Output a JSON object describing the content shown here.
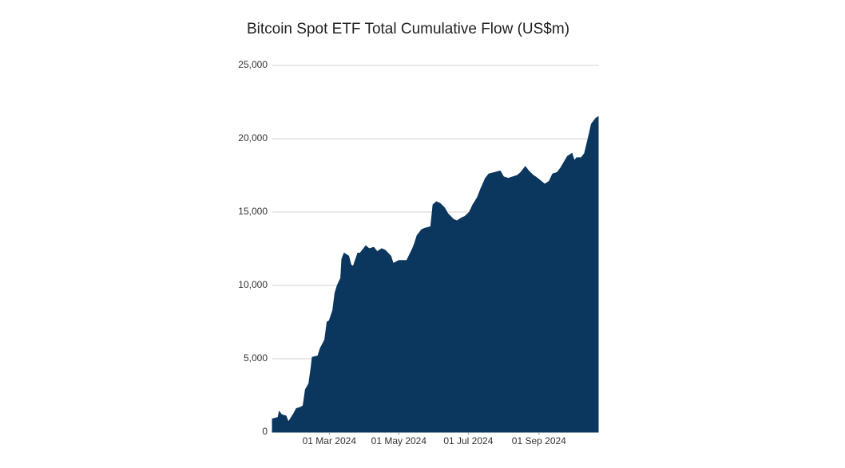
{
  "chart_data": {
    "type": "area",
    "title": "Bitcoin Spot ETF Total Cumulative Flow (US$m)",
    "color": "#0b365e",
    "grid": true,
    "xlim": [
      "2024-01-11",
      "2024-10-23"
    ],
    "xticks": [
      {
        "value": "2024-03-01",
        "label": "01 Mar 2024"
      },
      {
        "value": "2024-05-01",
        "label": "01 May 2024"
      },
      {
        "value": "2024-07-01",
        "label": "01 Jul 2024"
      },
      {
        "value": "2024-09-01",
        "label": "01 Sep 2024"
      }
    ],
    "ylim": [
      0,
      25000
    ],
    "yticks": [
      0,
      {
        "value": 5000,
        "label": "5,000"
      },
      {
        "value": 10000,
        "label": "10,000"
      },
      {
        "value": 15000,
        "label": "15,000"
      },
      {
        "value": 20000,
        "label": "20,000"
      },
      {
        "value": 25000,
        "label": "25,000"
      }
    ],
    "x": [
      "2024-01-11",
      "2024-01-16",
      "2024-01-17",
      "2024-01-19",
      "2024-01-23",
      "2024-01-25",
      "2024-01-26",
      "2024-01-30",
      "2024-02-01",
      "2024-02-05",
      "2024-02-07",
      "2024-02-09",
      "2024-02-12",
      "2024-02-14",
      "2024-02-15",
      "2024-02-20",
      "2024-02-22",
      "2024-02-26",
      "2024-02-28",
      "2024-03-01",
      "2024-03-04",
      "2024-03-06",
      "2024-03-08",
      "2024-03-11",
      "2024-03-12",
      "2024-03-14",
      "2024-03-18",
      "2024-03-20",
      "2024-03-22",
      "2024-03-26",
      "2024-03-28",
      "2024-04-02",
      "2024-04-05",
      "2024-04-09",
      "2024-04-12",
      "2024-04-16",
      "2024-04-19",
      "2024-04-24",
      "2024-04-26",
      "2024-05-01",
      "2024-05-06",
      "2024-05-08",
      "2024-05-13",
      "2024-05-15",
      "2024-05-17",
      "2024-05-21",
      "2024-05-24",
      "2024-05-29",
      "2024-05-31",
      "2024-06-03",
      "2024-06-06",
      "2024-06-10",
      "2024-06-13",
      "2024-06-18",
      "2024-06-21",
      "2024-06-25",
      "2024-06-28",
      "2024-07-02",
      "2024-07-05",
      "2024-07-09",
      "2024-07-12",
      "2024-07-16",
      "2024-07-19",
      "2024-07-24",
      "2024-07-29",
      "2024-08-01",
      "2024-08-05",
      "2024-08-09",
      "2024-08-13",
      "2024-08-16",
      "2024-08-20",
      "2024-08-23",
      "2024-08-27",
      "2024-08-29",
      "2024-09-03",
      "2024-09-06",
      "2024-09-10",
      "2024-09-13",
      "2024-09-17",
      "2024-09-20",
      "2024-09-26",
      "2024-09-30",
      "2024-10-02",
      "2024-10-04",
      "2024-10-08",
      "2024-10-11",
      "2024-10-15",
      "2024-10-17",
      "2024-10-21",
      "2024-10-23"
    ],
    "values": [
      900,
      1000,
      1400,
      1200,
      1100,
      700,
      800,
      1300,
      1600,
      1700,
      1800,
      2900,
      3300,
      4400,
      5100,
      5200,
      5700,
      6300,
      7500,
      7600,
      8300,
      9500,
      10000,
      10500,
      11800,
      12200,
      12000,
      11400,
      11300,
      12200,
      12200,
      12700,
      12500,
      12600,
      12300,
      12500,
      12400,
      12000,
      11500,
      11700,
      11700,
      11700,
      12500,
      12900,
      13400,
      13800,
      13900,
      14000,
      15500,
      15700,
      15600,
      15300,
      14900,
      14500,
      14400,
      14600,
      14700,
      15000,
      15500,
      16000,
      16600,
      17300,
      17600,
      17700,
      17800,
      17400,
      17300,
      17400,
      17500,
      17700,
      18100,
      17800,
      17500,
      17400,
      17100,
      16900,
      17100,
      17600,
      17700,
      18000,
      18800,
      19000,
      18500,
      18700,
      18700,
      19000,
      20300,
      21000,
      21400,
      21500
    ]
  }
}
